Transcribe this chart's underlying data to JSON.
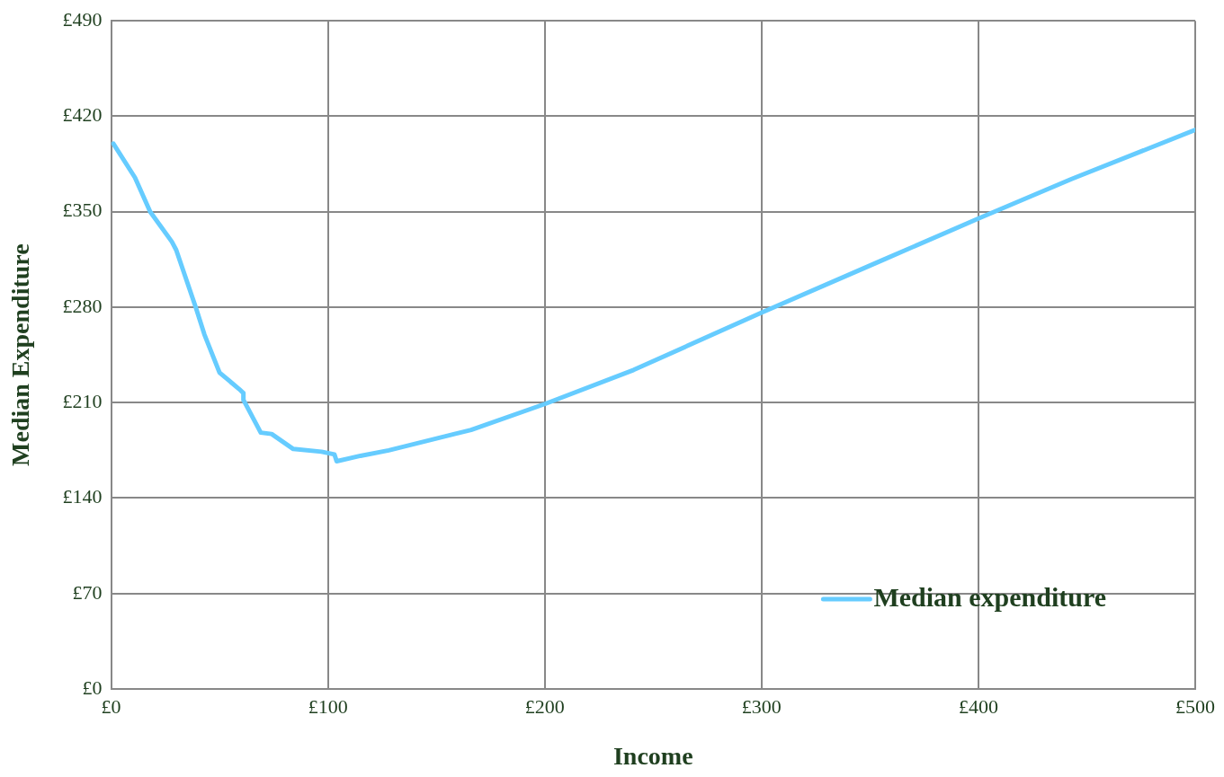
{
  "chart_data": {
    "type": "line",
    "xlabel": "Income",
    "ylabel": "Median Expenditure",
    "xlim": [
      0,
      500
    ],
    "xticks": [
      {
        "value": 0,
        "label": "£0"
      },
      {
        "value": 100,
        "label": "£100"
      },
      {
        "value": 200,
        "label": "£200"
      },
      {
        "value": 300,
        "label": "£300"
      },
      {
        "value": 400,
        "label": "£400"
      },
      {
        "value": 500,
        "label": "£500"
      }
    ],
    "ylim": [
      0,
      490
    ],
    "yticks": [
      {
        "value": 0,
        "label": "£0"
      },
      {
        "value": 70,
        "label": "£70"
      },
      {
        "value": 140,
        "label": "£140"
      },
      {
        "value": 210,
        "label": "£210"
      },
      {
        "value": 280,
        "label": "£280"
      },
      {
        "value": 350,
        "label": "£350"
      },
      {
        "value": 420,
        "label": "£420"
      },
      {
        "value": 490,
        "label": "£490"
      }
    ],
    "grid": true,
    "legend": "bottom right",
    "marker": "none",
    "line_style": "solid",
    "series": [
      {
        "name": "Median expenditure",
        "color": "#66ccff",
        "x": [
          1,
          11,
          18,
          28,
          30,
          39,
          43,
          50,
          59,
          61,
          61,
          69,
          74,
          84,
          97,
          103,
          104,
          115,
          128,
          166,
          200,
          241,
          300,
          355,
          400,
          443,
          500
        ],
        "values": [
          400,
          375,
          350,
          328,
          322,
          280,
          260,
          232,
          220,
          217,
          212,
          188,
          187,
          176,
          174,
          172,
          167,
          171,
          175,
          190,
          209,
          234,
          276,
          314,
          345,
          374,
          410
        ]
      }
    ]
  }
}
